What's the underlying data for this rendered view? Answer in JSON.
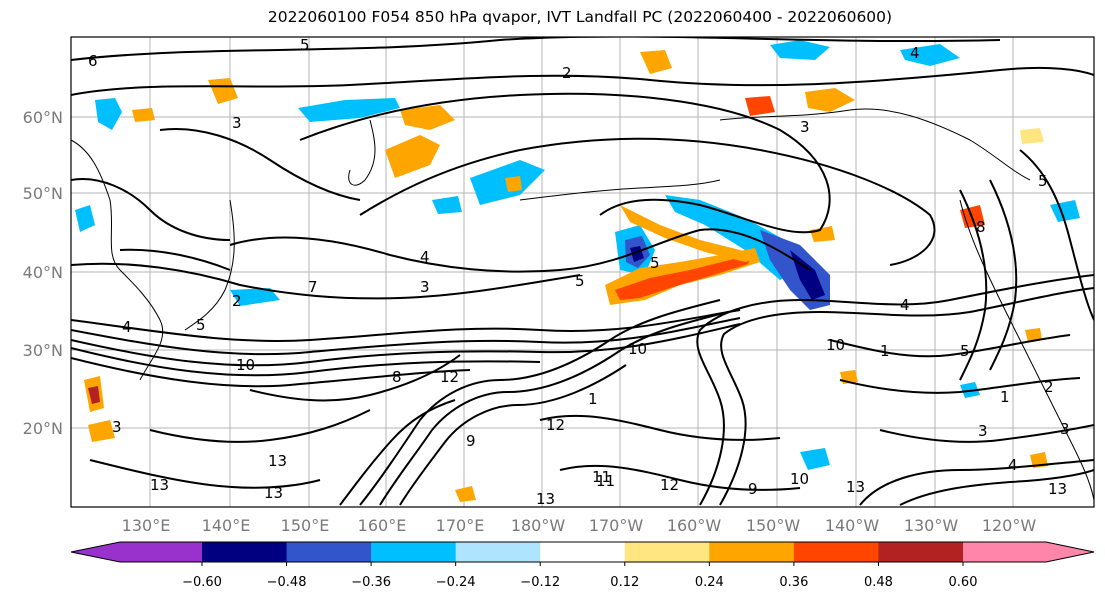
{
  "title": "2022060100 F054 850 hPa qvapor, IVT Landfall PC (2022060400 - 2022060600)",
  "lat_ticks": [
    "60°N",
    "50°N",
    "40°N",
    "30°N",
    "20°N"
  ],
  "lon_ticks": [
    "130°E",
    "140°E",
    "150°E",
    "160°E",
    "170°E",
    "180°W",
    "170°W",
    "160°W",
    "150°W",
    "140°W",
    "130°W",
    "120°W"
  ],
  "colorbar": {
    "labels": [
      "−0.60",
      "−0.48",
      "−0.36",
      "−0.24",
      "−0.12",
      "0.12",
      "0.24",
      "0.36",
      "0.48",
      "0.60"
    ],
    "colors": [
      "#9932cc",
      "#000080",
      "#3355cc",
      "#00bfff",
      "#afe4ff",
      "#ffffff",
      "#ffe680",
      "#ffa500",
      "#ff4500",
      "#b22222",
      "#ff85aa"
    ]
  },
  "contour_labels": [
    "6",
    "5",
    "4",
    "3",
    "2",
    "7",
    "8",
    "9",
    "10",
    "11",
    "12",
    "13",
    "5",
    "4",
    "3",
    "5",
    "10",
    "12",
    "13",
    "11",
    "13",
    "9",
    "10",
    "13",
    "5",
    "4",
    "3",
    "1",
    "2",
    "3",
    "4",
    "5",
    "8",
    "1",
    "2",
    "3",
    "5",
    "3",
    "4",
    "13",
    "12",
    "10",
    "1",
    "13"
  ]
}
